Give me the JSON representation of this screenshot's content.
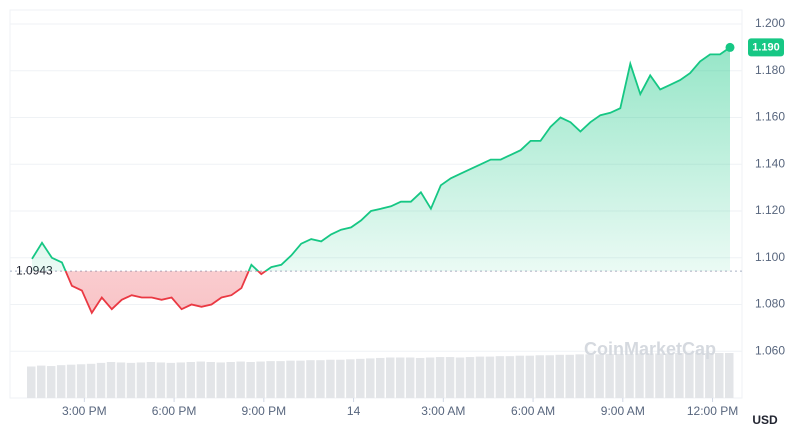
{
  "chart_data": {
    "type": "line",
    "currency": "USD",
    "watermark": "CoinMarketCap",
    "baseline": 1.0943,
    "up_color": "#16c784",
    "down_color": "#ea3943",
    "volume_color": "#e3e5e8",
    "xlim": [
      0,
      70
    ],
    "xticks": [
      {
        "value": 5.25,
        "label": "3:00 PM"
      },
      {
        "value": 14.25,
        "label": "6:00 PM"
      },
      {
        "value": 23.25,
        "label": "9:00 PM"
      },
      {
        "value": 32.25,
        "label": "14"
      },
      {
        "value": 41.25,
        "label": "3:00 AM"
      },
      {
        "value": 50.25,
        "label": "6:00 AM"
      },
      {
        "value": 59.25,
        "label": "9:00 AM"
      },
      {
        "value": 68.25,
        "label": "12:00 PM"
      }
    ],
    "ylim": [
      1.04,
      1.206
    ],
    "yticks": [
      {
        "value": 1.06,
        "label": "1.060"
      },
      {
        "value": 1.08,
        "label": "1.080"
      },
      {
        "value": 1.1,
        "label": "1.100"
      },
      {
        "value": 1.12,
        "label": "1.120"
      },
      {
        "value": 1.14,
        "label": "1.140"
      },
      {
        "value": 1.16,
        "label": "1.160"
      },
      {
        "value": 1.18,
        "label": "1.180"
      },
      {
        "value": 1.2,
        "label": "1.200"
      }
    ],
    "grid": true,
    "values": [
      1.0995,
      1.1064,
      1.1,
      1.098,
      1.088,
      1.086,
      1.0764,
      1.083,
      1.078,
      1.082,
      1.084,
      1.083,
      1.083,
      1.082,
      1.083,
      1.078,
      1.08,
      1.079,
      1.08,
      1.083,
      1.084,
      1.087,
      1.097,
      1.093,
      1.096,
      1.097,
      1.101,
      1.106,
      1.108,
      1.107,
      1.11,
      1.112,
      1.113,
      1.116,
      1.12,
      1.121,
      1.122,
      1.124,
      1.124,
      1.128,
      1.121,
      1.131,
      1.134,
      1.136,
      1.138,
      1.14,
      1.142,
      1.142,
      1.144,
      1.146,
      1.15,
      1.15,
      1.156,
      1.16,
      1.158,
      1.154,
      1.158,
      1.161,
      1.162,
      1.164,
      1.183,
      1.17,
      1.178,
      1.172,
      1.174,
      1.176,
      1.179,
      1.184,
      1.187,
      1.187,
      1.19
    ],
    "last_label": "1.190",
    "volume": [
      70,
      72,
      71,
      73,
      74,
      75,
      76,
      78,
      80,
      79,
      78,
      79,
      80,
      79,
      78,
      79,
      80,
      81,
      80,
      79,
      80,
      81,
      80,
      81,
      82,
      82,
      83,
      83,
      84,
      84,
      85,
      85,
      86,
      87,
      88,
      89,
      90,
      90,
      90,
      89,
      90,
      91,
      91,
      90,
      91,
      92,
      92,
      93,
      93,
      94,
      94,
      95,
      95,
      96,
      96,
      97,
      97,
      97,
      98,
      98,
      98,
      99,
      99,
      99,
      99,
      100,
      100,
      100,
      100,
      100,
      100
    ]
  }
}
